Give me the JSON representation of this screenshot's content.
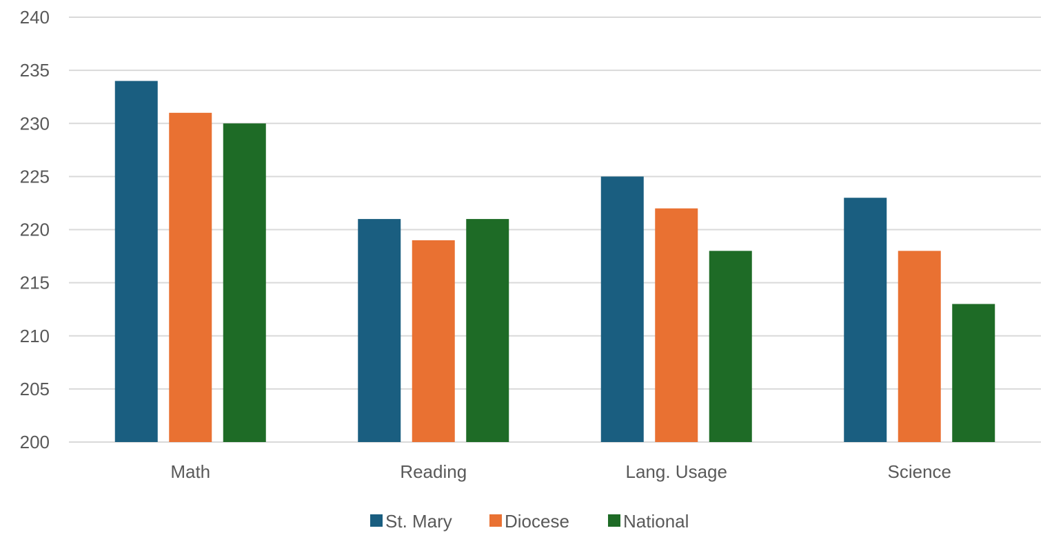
{
  "chart_data": {
    "type": "bar",
    "title": "",
    "xlabel": "",
    "ylabel": "",
    "categories": [
      "Math",
      "Reading",
      "Lang. Usage",
      "Science"
    ],
    "series": [
      {
        "name": "St. Mary",
        "color": "#1a5e80",
        "values": [
          234,
          221,
          225,
          223
        ]
      },
      {
        "name": "Diocese",
        "color": "#e97132",
        "values": [
          231,
          219,
          222,
          218
        ]
      },
      {
        "name": "National",
        "color": "#1e6b26",
        "values": [
          230,
          221,
          218,
          213
        ]
      }
    ],
    "ylim": [
      200,
      240
    ],
    "yticks": [
      "200",
      "205",
      "210",
      "215",
      "220",
      "225",
      "230",
      "235",
      "240"
    ],
    "grid": true,
    "legend_position": "bottom"
  }
}
